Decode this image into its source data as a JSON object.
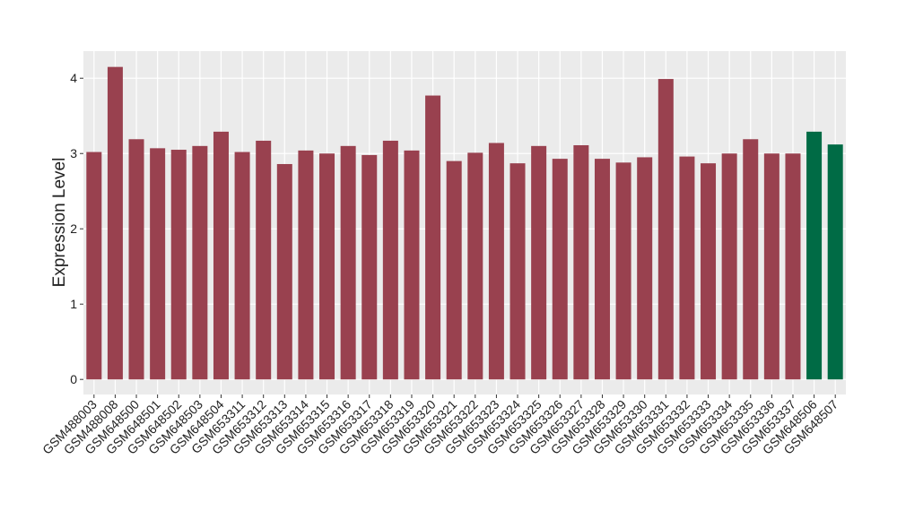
{
  "chart_data": {
    "type": "bar",
    "y_label": "Expression Level",
    "categories": [
      "GSM488003",
      "GSM488008",
      "GSM648500",
      "GSM648501",
      "GSM648502",
      "GSM648503",
      "GSM648504",
      "GSM653311",
      "GSM653312",
      "GSM653313",
      "GSM653314",
      "GSM653315",
      "GSM653316",
      "GSM653317",
      "GSM653318",
      "GSM653319",
      "GSM653320",
      "GSM653321",
      "GSM653322",
      "GSM653323",
      "GSM653324",
      "GSM653325",
      "GSM653326",
      "GSM653327",
      "GSM653328",
      "GSM653329",
      "GSM653330",
      "GSM653331",
      "GSM653332",
      "GSM653333",
      "GSM653334",
      "GSM653335",
      "GSM653336",
      "GSM653337",
      "GSM648506",
      "GSM648507"
    ],
    "values": [
      3.02,
      4.15,
      3.19,
      3.07,
      3.05,
      3.1,
      3.29,
      3.02,
      3.17,
      2.86,
      3.04,
      3.0,
      3.1,
      2.98,
      3.17,
      3.04,
      3.77,
      2.9,
      3.01,
      3.14,
      2.87,
      3.1,
      2.93,
      3.11,
      2.93,
      2.88,
      2.95,
      3.99,
      2.96,
      2.87,
      3.0,
      3.19,
      3.0,
      3.0,
      3.29,
      3.12
    ],
    "colors": [
      "#99414f",
      "#99414f",
      "#99414f",
      "#99414f",
      "#99414f",
      "#99414f",
      "#99414f",
      "#99414f",
      "#99414f",
      "#99414f",
      "#99414f",
      "#99414f",
      "#99414f",
      "#99414f",
      "#99414f",
      "#99414f",
      "#99414f",
      "#99414f",
      "#99414f",
      "#99414f",
      "#99414f",
      "#99414f",
      "#99414f",
      "#99414f",
      "#99414f",
      "#99414f",
      "#99414f",
      "#99414f",
      "#99414f",
      "#99414f",
      "#99414f",
      "#99414f",
      "#99414f",
      "#99414f",
      "#006b45",
      "#006b45"
    ],
    "ylim": [
      -0.2,
      4.36
    ],
    "yticks": [
      0,
      1,
      2,
      3,
      4
    ],
    "grid": true
  }
}
